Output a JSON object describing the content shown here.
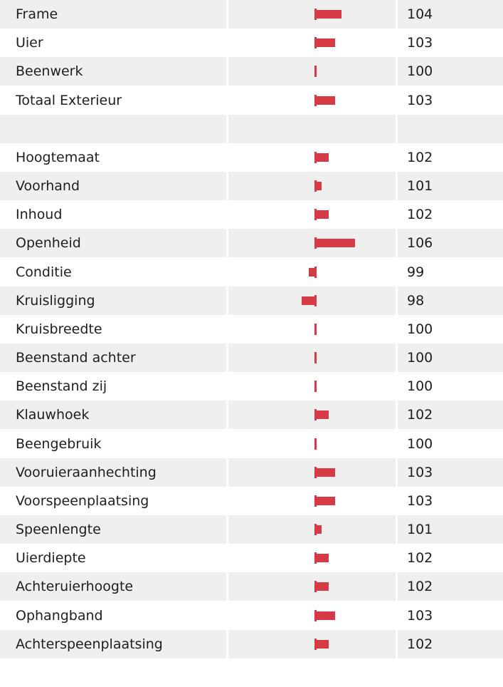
{
  "groups": [
    [
      {
        "label": "Frame",
        "value": 104
      },
      {
        "label": "Uier",
        "value": 103
      },
      {
        "label": "Beenwerk",
        "value": 100
      },
      {
        "label": "Totaal Exterieur",
        "value": 103
      }
    ],
    [
      {
        "label": "Hoogtemaat",
        "value": 102
      },
      {
        "label": "Voorhand",
        "value": 101
      },
      {
        "label": "Inhoud",
        "value": 102
      },
      {
        "label": "Openheid",
        "value": 106
      },
      {
        "label": "Conditie",
        "value": 99
      },
      {
        "label": "Kruisligging",
        "value": 98
      },
      {
        "label": "Kruisbreedte",
        "value": 100
      },
      {
        "label": "Beenstand achter",
        "value": 100
      },
      {
        "label": "Beenstand zij",
        "value": 100
      },
      {
        "label": "Klauwhoek",
        "value": 102
      },
      {
        "label": "Beengebruik",
        "value": 100
      },
      {
        "label": "Vooruieraanhechting",
        "value": 103
      },
      {
        "label": "Voorspeenplaatsing",
        "value": 103
      },
      {
        "label": "Speenlengte",
        "value": 101
      },
      {
        "label": "Uierdiepte",
        "value": 102
      },
      {
        "label": "Achteruierhoogte",
        "value": 102
      },
      {
        "label": "Ophangband",
        "value": 103
      },
      {
        "label": "Achterspeenplaatsing",
        "value": 102
      }
    ]
  ]
}
